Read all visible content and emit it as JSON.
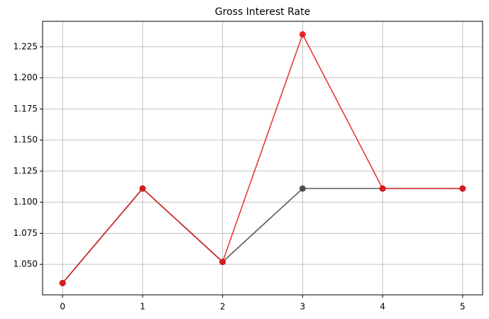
{
  "chart_data": {
    "type": "line",
    "title": "Gross Interest Rate",
    "x": [
      0,
      1,
      2,
      3,
      4,
      5
    ],
    "series": [
      {
        "color": "#404040",
        "values": [
          1.035,
          1.111,
          1.052,
          1.111,
          1.111,
          1.111
        ]
      },
      {
        "color": "#e01818",
        "values": [
          1.035,
          1.111,
          1.052,
          1.235,
          1.111,
          1.111
        ]
      }
    ],
    "xlim": [
      -0.25,
      5.25
    ],
    "xticks": [
      0,
      1,
      2,
      3,
      4,
      5
    ],
    "ylim": [
      1.0255,
      1.2455
    ],
    "yticks": [
      {
        "value": 1.05,
        "label": "1.050"
      },
      {
        "value": 1.075,
        "label": "1.075"
      },
      {
        "value": 1.1,
        "label": "1.100"
      },
      {
        "value": 1.125,
        "label": "1.125"
      },
      {
        "value": 1.15,
        "label": "1.150"
      },
      {
        "value": 1.175,
        "label": "1.175"
      },
      {
        "value": 1.2,
        "label": "1.200"
      },
      {
        "value": 1.225,
        "label": "1.225"
      }
    ],
    "grid": true
  }
}
